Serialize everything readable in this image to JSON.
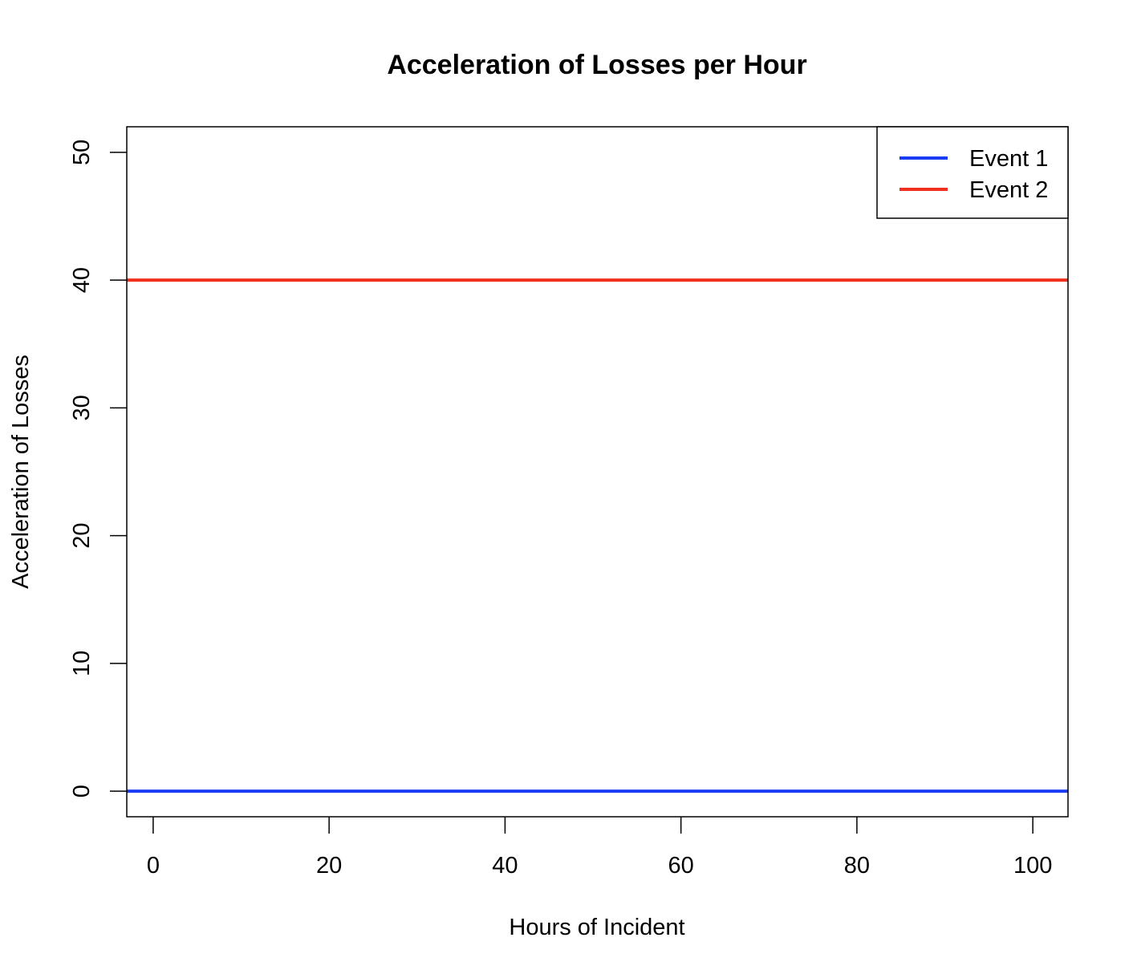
{
  "chart_data": {
    "type": "line",
    "title": "Acceleration of Losses per Hour",
    "xlabel": "Hours of Incident",
    "ylabel": "Acceleration of Losses",
    "xlim": [
      -3,
      104
    ],
    "ylim": [
      -2,
      52
    ],
    "xticks": [
      0,
      20,
      40,
      60,
      80,
      100
    ],
    "yticks": [
      0,
      10,
      20,
      30,
      40,
      50
    ],
    "grid": false,
    "legend_position": "top-right",
    "series": [
      {
        "name": "Event 1",
        "color": "#1a3cf5",
        "x": [
          -3,
          104
        ],
        "y": [
          0,
          0
        ]
      },
      {
        "name": "Event 2",
        "color": "#f0301c",
        "x": [
          -3,
          104
        ],
        "y": [
          40,
          40
        ]
      }
    ]
  }
}
